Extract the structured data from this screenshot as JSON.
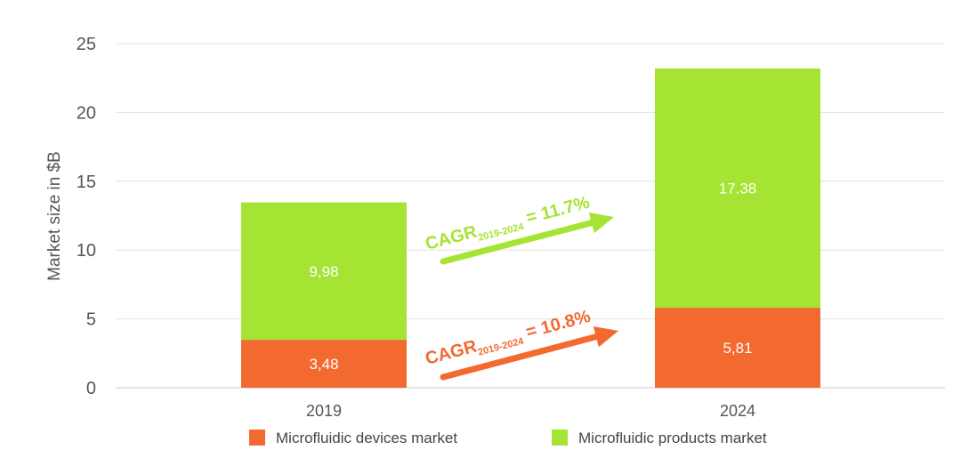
{
  "chart_data": {
    "type": "bar",
    "stacked": true,
    "categories": [
      "2019",
      "2024"
    ],
    "series": [
      {
        "name": "Microfluidic devices market",
        "values": [
          3.48,
          5.81
        ],
        "labels": [
          "3,48",
          "5,81"
        ],
        "color": "#f26a30"
      },
      {
        "name": "Microfluidic products market",
        "values": [
          9.98,
          17.38
        ],
        "labels": [
          "9,98",
          "17.38"
        ],
        "color": "#a5e432"
      }
    ],
    "ylabel": "Market size in $B",
    "ylim": [
      0,
      25
    ],
    "yticks": [
      "0",
      "5",
      "10",
      "15",
      "20",
      "25"
    ],
    "grid": true,
    "legend_position": "bottom",
    "annotations": [
      {
        "prefix": "CAGR",
        "subscript": "2019-2024",
        "suffix": " = 11.7%",
        "color": "#a5e432"
      },
      {
        "prefix": "CAGR",
        "subscript": "2019-2024",
        "suffix": " = 10.8%",
        "color": "#f26a30"
      }
    ]
  }
}
